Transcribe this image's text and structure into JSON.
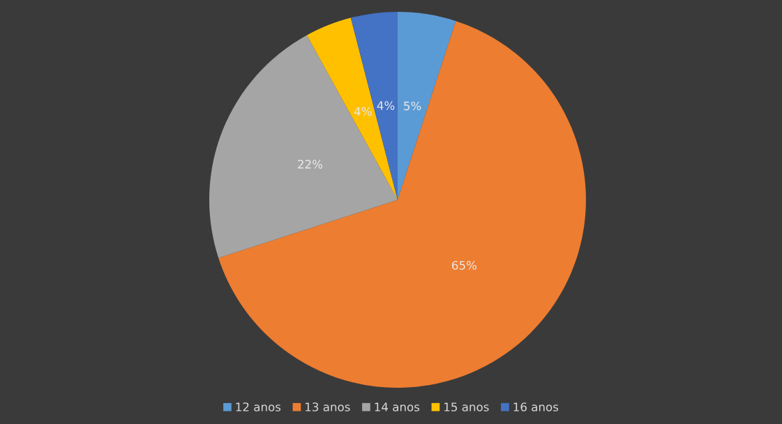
{
  "chart_data": {
    "type": "pie",
    "categories": [
      "12 anos",
      "13 anos",
      "14 anos",
      "15 anos",
      "16 anos"
    ],
    "values": [
      5,
      65,
      22,
      4,
      4
    ],
    "colors": [
      "#5b9bd5",
      "#ed7d31",
      "#a5a5a5",
      "#ffc000",
      "#4472c4"
    ],
    "value_labels": [
      "5%",
      "65%",
      "22%",
      "4%",
      "4%"
    ],
    "legend": "bottom"
  }
}
